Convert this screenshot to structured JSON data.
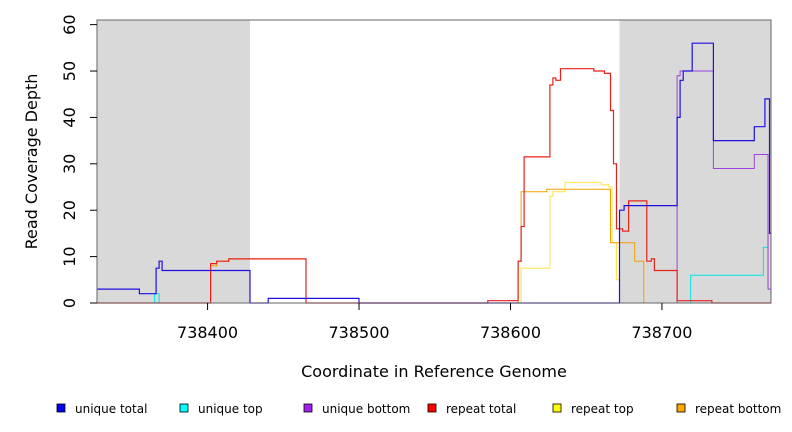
{
  "chart_data": {
    "type": "line",
    "title": "",
    "xlabel": "Coordinate in Reference Genome",
    "ylabel": "Read Coverage Depth",
    "xlim": [
      738327,
      738772
    ],
    "ylim": [
      0,
      61
    ],
    "x_ticks": [
      738400,
      738500,
      738600,
      738700
    ],
    "y_ticks": [
      0,
      10,
      20,
      30,
      40,
      50,
      60
    ],
    "x_tick_labels": [
      "738400",
      "738500",
      "738600",
      "738700"
    ],
    "y_tick_labels": [
      "0",
      "10",
      "20",
      "30",
      "40",
      "50",
      "60"
    ],
    "grid": false,
    "shaded_regions": [
      {
        "x_start": 738327,
        "x_end": 738428,
        "color": "#d9d9d9"
      },
      {
        "x_start": 738672,
        "x_end": 738772,
        "color": "#d9d9d9"
      }
    ],
    "legend_position": "bottom",
    "series": [
      {
        "name": "unique top",
        "color": "#00e5e5",
        "line_width": 1,
        "steps": [
          [
            738327,
            0
          ],
          [
            738365,
            2
          ],
          [
            738368,
            0
          ],
          [
            738672,
            0
          ],
          [
            738700,
            0
          ],
          [
            738719,
            6
          ],
          [
            738767,
            6
          ],
          [
            738767,
            12
          ],
          [
            738770,
            12
          ],
          [
            738770,
            3
          ],
          [
            738772,
            3
          ]
        ]
      },
      {
        "name": "unique bottom",
        "color": "#a040e0",
        "line_width": 1,
        "steps": [
          [
            738327,
            0
          ],
          [
            738672,
            0
          ],
          [
            738710,
            49
          ],
          [
            738712,
            50
          ],
          [
            738734,
            50
          ],
          [
            738734,
            29
          ],
          [
            738761,
            29
          ],
          [
            738761,
            32
          ],
          [
            738770,
            32
          ],
          [
            738770,
            3
          ],
          [
            738772,
            3
          ]
        ]
      },
      {
        "name": "repeat top",
        "color": "#ffe640",
        "line_width": 1,
        "steps": [
          [
            738327,
            0
          ],
          [
            738605,
            0
          ],
          [
            738607,
            7.5
          ],
          [
            738626,
            7.5
          ],
          [
            738626,
            23
          ],
          [
            738628,
            24
          ],
          [
            738636,
            26
          ],
          [
            738660,
            25.5
          ],
          [
            738665,
            25
          ],
          [
            738667,
            13
          ],
          [
            738670,
            5
          ],
          [
            738672,
            0
          ],
          [
            738772,
            0
          ]
        ]
      },
      {
        "name": "repeat bottom",
        "color": "#f0a000",
        "line_width": 1,
        "steps": [
          [
            738327,
            0
          ],
          [
            738402,
            0
          ],
          [
            738402,
            8
          ],
          [
            738406,
            8
          ],
          [
            738406,
            9
          ],
          [
            738414,
            9
          ],
          [
            738414,
            9.5
          ],
          [
            738465,
            9.5
          ],
          [
            738465,
            0
          ],
          [
            738605,
            0
          ],
          [
            738605,
            9
          ],
          [
            738607,
            9
          ],
          [
            738607,
            24
          ],
          [
            738624,
            24
          ],
          [
            738624,
            24.5
          ],
          [
            738628,
            24.5
          ],
          [
            738666,
            24.5
          ],
          [
            738666,
            13
          ],
          [
            738682,
            13
          ],
          [
            738682,
            9
          ],
          [
            738688,
            9
          ],
          [
            738688,
            0
          ],
          [
            738772,
            0
          ]
        ]
      },
      {
        "name": "repeat total",
        "color": "#e8221a",
        "line_width": 1.2,
        "steps": [
          [
            738327,
            0
          ],
          [
            738402,
            0
          ],
          [
            738402,
            8.5
          ],
          [
            738406,
            8.5
          ],
          [
            738406,
            9
          ],
          [
            738414,
            9
          ],
          [
            738414,
            9.5
          ],
          [
            738465,
            9.5
          ],
          [
            738465,
            0
          ],
          [
            738585,
            0
          ],
          [
            738585,
            0.5
          ],
          [
            738605,
            0.5
          ],
          [
            738605,
            9
          ],
          [
            738607,
            9
          ],
          [
            738607,
            16.5
          ],
          [
            738609,
            16.5
          ],
          [
            738609,
            31.5
          ],
          [
            738626,
            31.5
          ],
          [
            738626,
            47
          ],
          [
            738628,
            48.5
          ],
          [
            738630,
            48
          ],
          [
            738633,
            48
          ],
          [
            738633,
            50.5
          ],
          [
            738655,
            50.5
          ],
          [
            738655,
            50
          ],
          [
            738662,
            50
          ],
          [
            738662,
            49.5
          ],
          [
            738666,
            49.5
          ],
          [
            738666,
            41.5
          ],
          [
            738668,
            41.5
          ],
          [
            738668,
            30
          ],
          [
            738670,
            29
          ],
          [
            738670,
            16
          ],
          [
            738674,
            15.5
          ],
          [
            738678,
            15.5
          ],
          [
            738678,
            22
          ],
          [
            738690,
            22
          ],
          [
            738690,
            9
          ],
          [
            738693,
            9.5
          ],
          [
            738695,
            9.5
          ],
          [
            738695,
            7
          ],
          [
            738710,
            7
          ],
          [
            738710,
            0.5
          ],
          [
            738733,
            0.5
          ],
          [
            738733,
            0
          ],
          [
            738772,
            0
          ]
        ]
      },
      {
        "name": "unique total",
        "color": "#2010e0",
        "line_width": 1.2,
        "steps": [
          [
            738327,
            3
          ],
          [
            738355,
            3
          ],
          [
            738355,
            2
          ],
          [
            738366,
            2
          ],
          [
            738366,
            7.5
          ],
          [
            738368,
            9
          ],
          [
            738370,
            9
          ],
          [
            738370,
            7
          ],
          [
            738428,
            7
          ],
          [
            738428,
            0
          ],
          [
            738440,
            0
          ],
          [
            738440,
            1
          ],
          [
            738500,
            1
          ],
          [
            738500,
            0
          ],
          [
            738672,
            0
          ],
          [
            738672,
            20
          ],
          [
            738675,
            21
          ],
          [
            738710,
            21
          ],
          [
            738710,
            40
          ],
          [
            738712,
            48
          ],
          [
            738714,
            50
          ],
          [
            738720,
            50
          ],
          [
            738720,
            56
          ],
          [
            738734,
            56
          ],
          [
            738734,
            35
          ],
          [
            738761,
            35
          ],
          [
            738761,
            38
          ],
          [
            738768,
            38
          ],
          [
            738768,
            44
          ],
          [
            738771,
            44
          ],
          [
            738771,
            15
          ],
          [
            738772,
            15
          ]
        ]
      }
    ],
    "legend": [
      {
        "label": "unique total",
        "color": "#0000ff"
      },
      {
        "label": "unique top",
        "color": "#00ffff"
      },
      {
        "label": "unique bottom",
        "color": "#a020f0"
      },
      {
        "label": "repeat total",
        "color": "#ff0000"
      },
      {
        "label": "repeat top",
        "color": "#ffff00"
      },
      {
        "label": "repeat bottom",
        "color": "#ffa500"
      }
    ]
  }
}
